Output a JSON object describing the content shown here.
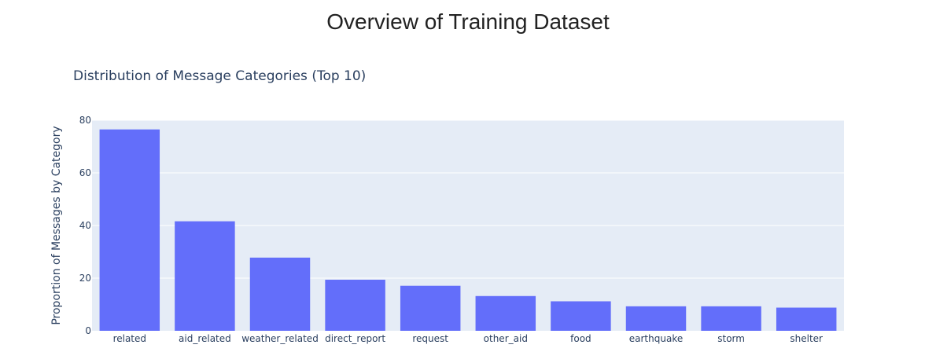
{
  "page": {
    "title": "Overview of Training Dataset"
  },
  "chart_data": {
    "type": "bar",
    "title": "Distribution of Message Categories (Top 10)",
    "xlabel": "",
    "ylabel": "Proportion of Messages by Category",
    "categories": [
      "related",
      "aid_related",
      "weather_related",
      "direct_report",
      "request",
      "other_aid",
      "food",
      "earthquake",
      "storm",
      "shelter"
    ],
    "values": [
      76.5,
      41.6,
      27.8,
      19.4,
      17.1,
      13.2,
      11.2,
      9.3,
      9.3,
      8.8
    ],
    "ylim": [
      0,
      80
    ],
    "yticks": [
      0,
      20,
      40,
      60,
      80
    ],
    "grid": true,
    "legend": "none",
    "colors": {
      "bar": "#636efa",
      "plot_bg": "#e5ecf6",
      "grid": "#ffffff",
      "text": "#2a3f5f"
    }
  }
}
